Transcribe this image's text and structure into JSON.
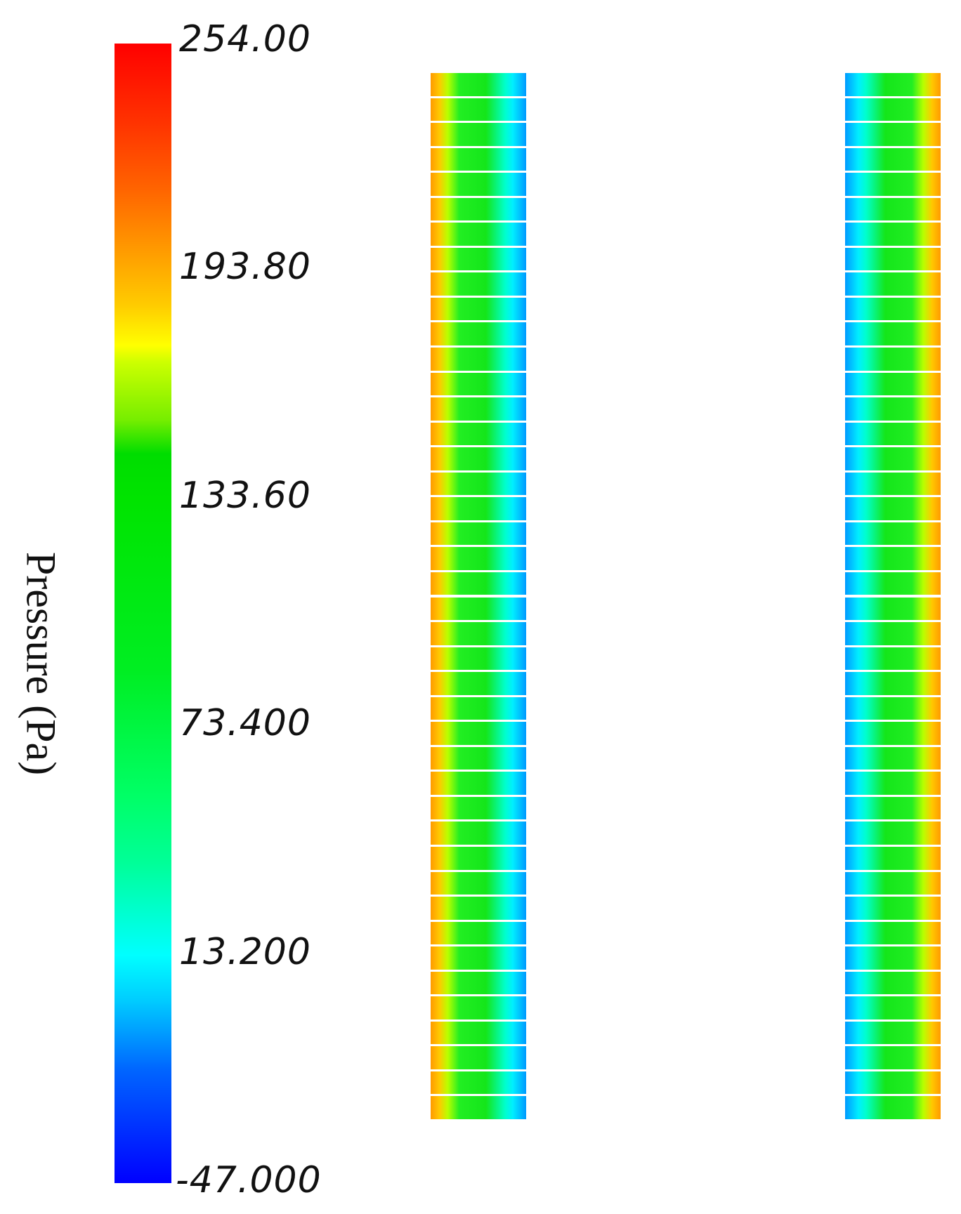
{
  "legend": {
    "title": "Pressure (Pa)",
    "ticks": [
      "254.00",
      "193.80",
      "133.60",
      "73.400",
      "13.200",
      "-47.000"
    ],
    "range": [
      -47.0,
      254.0
    ],
    "colormap": [
      "#0000ff",
      "#00ffff",
      "#00e400",
      "#ffff00",
      "#ff0000"
    ]
  },
  "columns": [
    {
      "id": "left",
      "high_pressure_side": "left",
      "low_pressure_side": "right",
      "segment_count": 42
    },
    {
      "id": "right",
      "high_pressure_side": "right",
      "low_pressure_side": "left",
      "segment_count": 42
    }
  ]
}
